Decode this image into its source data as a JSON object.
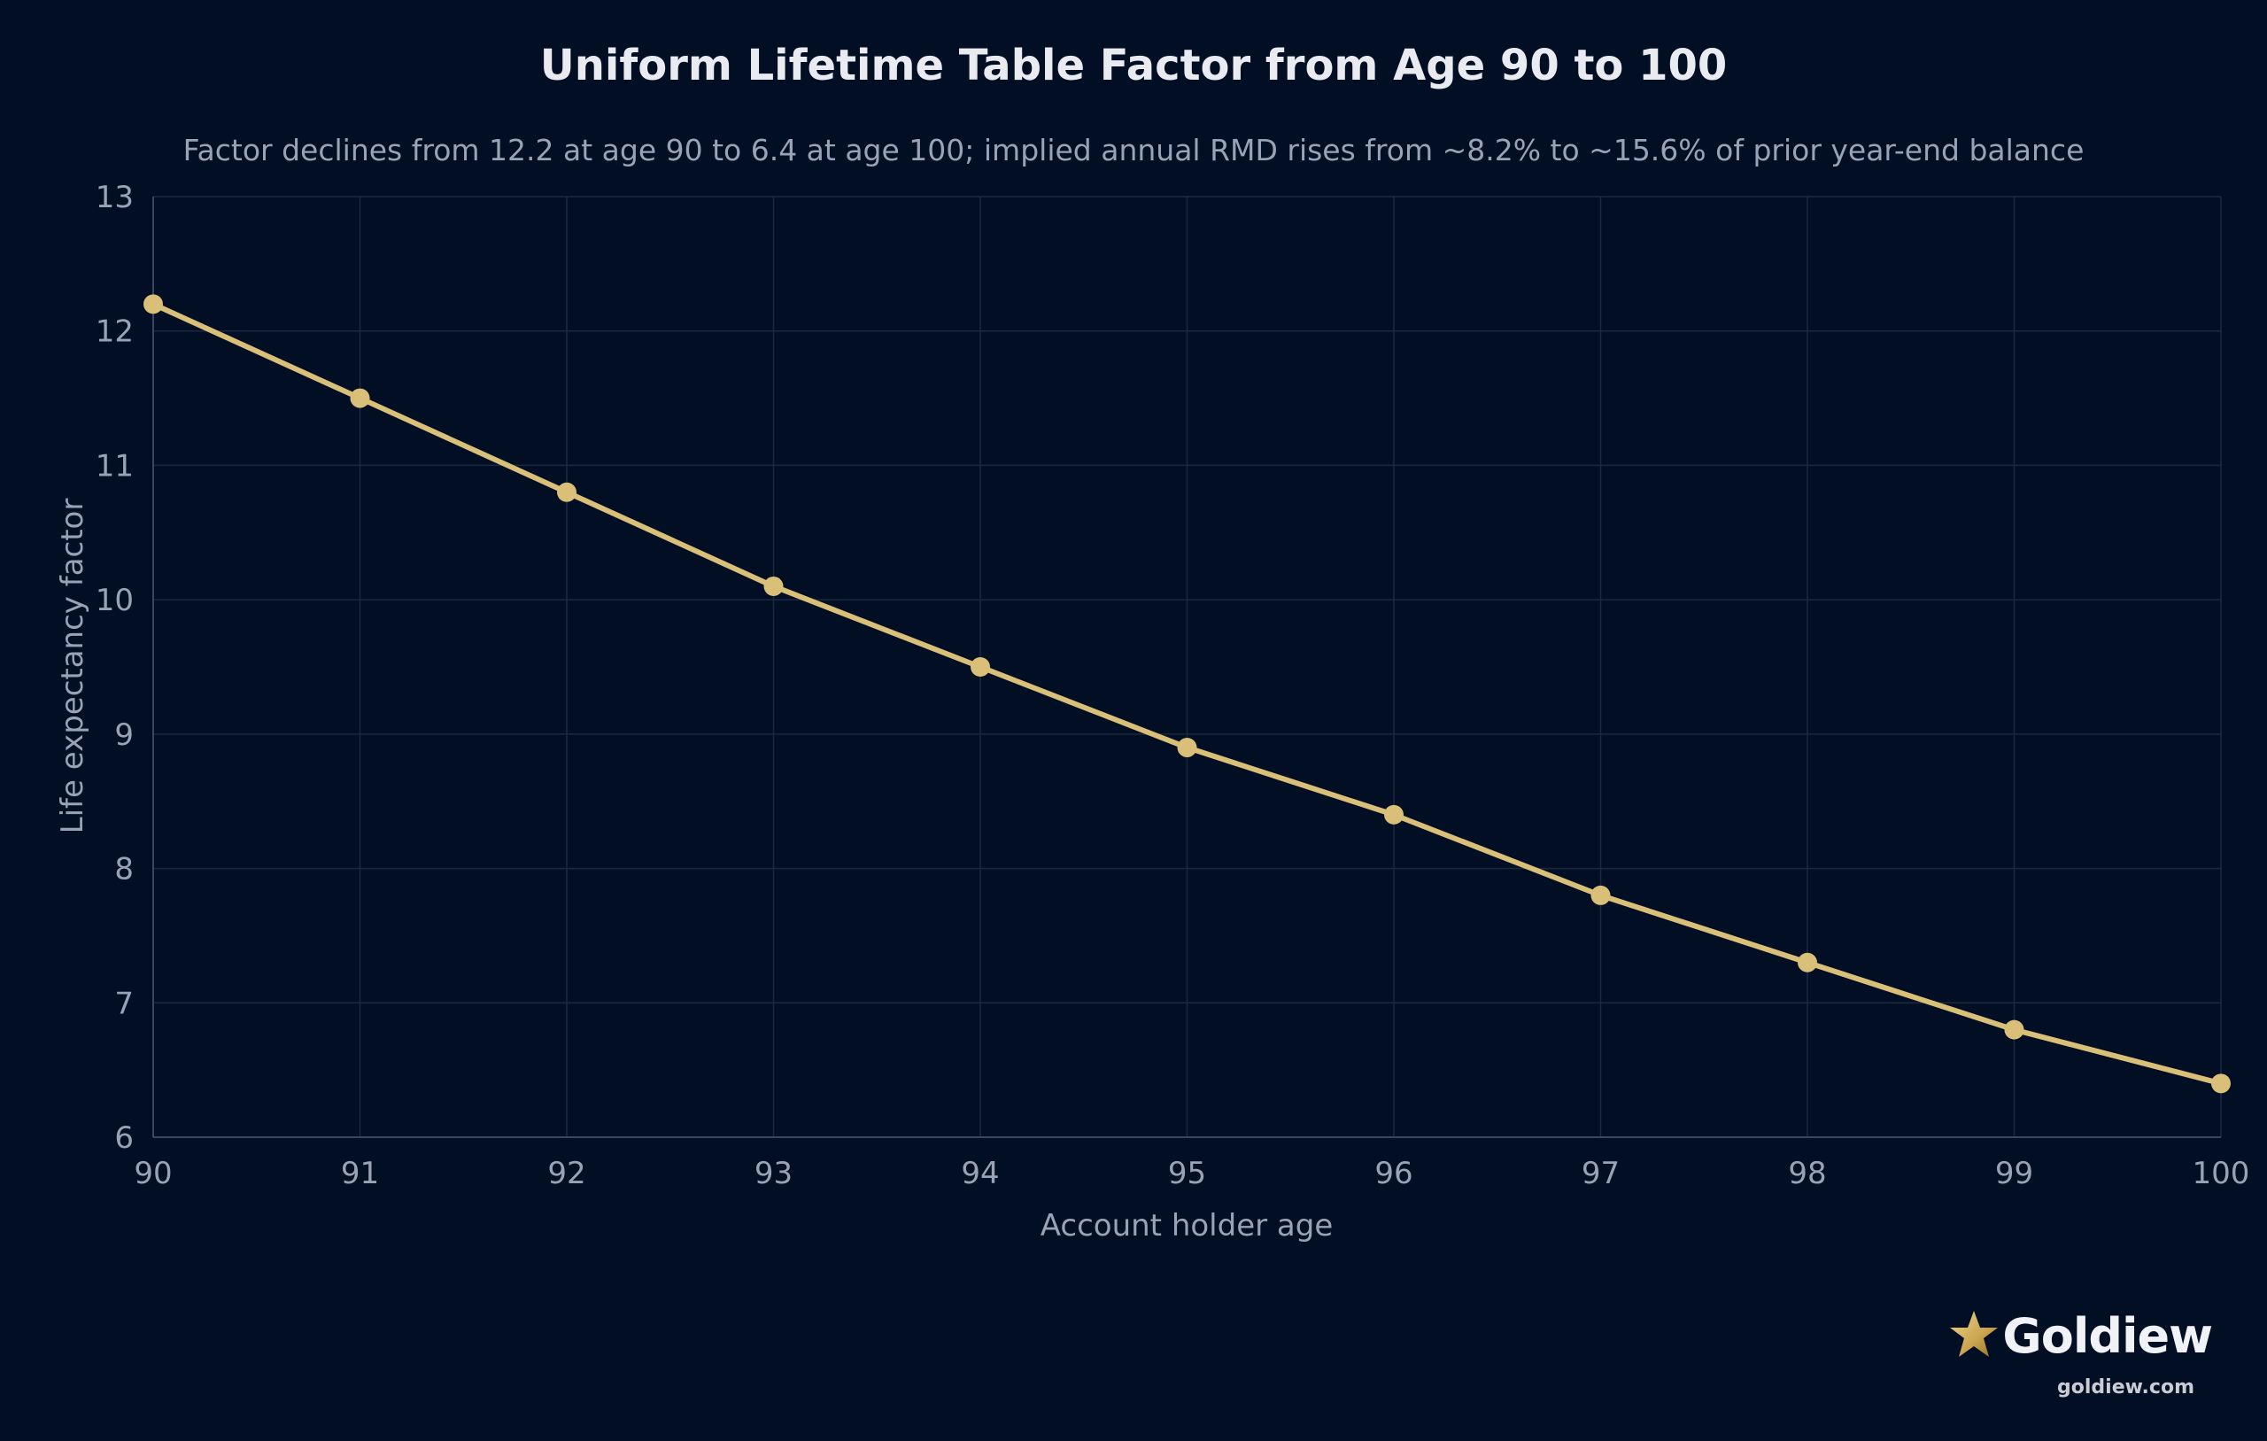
{
  "chart_data": {
    "type": "line",
    "title": "Uniform Lifetime Table Factor from Age 90 to 100",
    "subtitle": "Factor declines from 12.2 at age 90 to 6.4 at age 100; implied annual RMD rises from ~8.2% to ~15.6% of prior year-end balance",
    "xlabel": "Account holder age",
    "ylabel": "Life expectancy factor",
    "x": [
      90,
      91,
      92,
      93,
      94,
      95,
      96,
      97,
      98,
      99,
      100
    ],
    "series": [
      {
        "values": [
          12.2,
          11.5,
          10.8,
          10.1,
          9.5,
          8.9,
          8.4,
          7.8,
          7.3,
          6.8,
          6.4
        ]
      }
    ],
    "xlim": [
      90,
      100
    ],
    "ylim": [
      6,
      13
    ],
    "xticks": [
      "90",
      "91",
      "92",
      "93",
      "94",
      "95",
      "96",
      "97",
      "98",
      "99",
      "100"
    ],
    "yticks": [
      "6",
      "7",
      "8",
      "9",
      "10",
      "11",
      "12",
      "13"
    ],
    "grid": true,
    "legend": "none",
    "colors": {
      "background": "#020e24",
      "line": "#d9bf78",
      "marker": "#d9bf78",
      "grid": "#1c2840",
      "text": "#9aa3b5",
      "title": "#e9ebf1"
    }
  },
  "brand": {
    "name": "Goldiew",
    "url": "goldiew.com",
    "icon": "star-icon",
    "icon_color": "#c9a34e"
  }
}
